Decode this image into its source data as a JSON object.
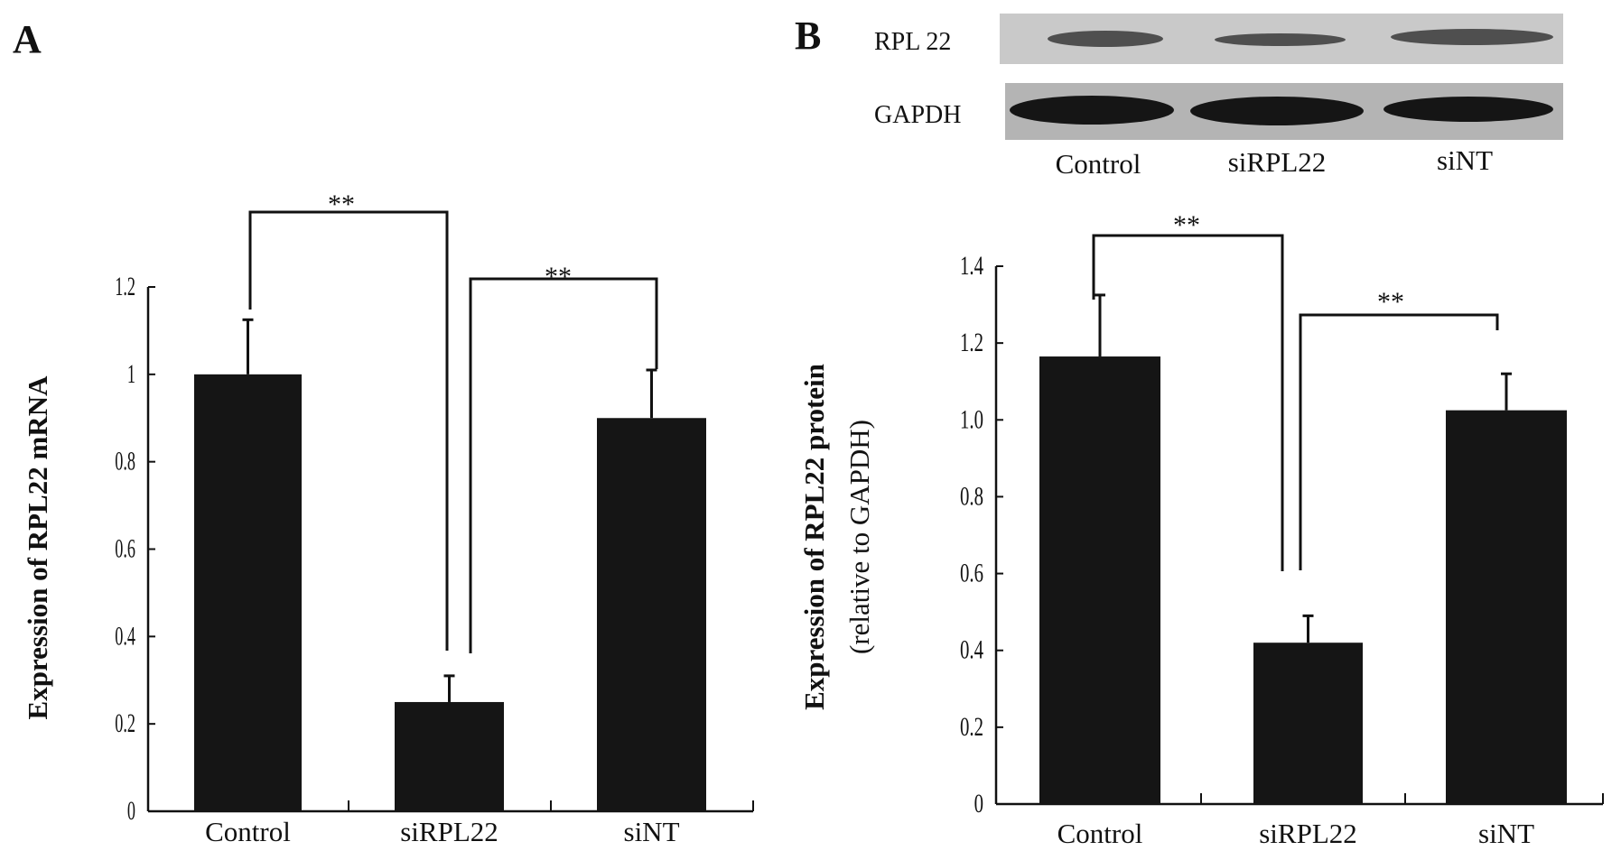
{
  "chart_data": [
    {
      "panel": "A",
      "type": "bar",
      "categories": [
        "Control",
        "siRPL22",
        "siNT"
      ],
      "values": [
        1.0,
        0.25,
        0.9
      ],
      "error_upper": [
        1.125,
        0.31,
        1.01
      ],
      "ylabel": "Expression of RPL22 mRNA",
      "xlabel": "",
      "ylim": [
        0,
        1.2
      ],
      "yticks": [
        "0",
        "0.2",
        "0.4",
        "0.6",
        "0.8",
        "1",
        "1.2"
      ],
      "significance": [
        {
          "from": "Control",
          "to": "siRPL22",
          "label": "**"
        },
        {
          "from": "siRPL22",
          "to": "siNT",
          "label": "**"
        }
      ]
    },
    {
      "panel": "B",
      "type": "bar",
      "categories": [
        "Control",
        "siRPL22",
        "siNT"
      ],
      "values": [
        1.165,
        0.42,
        1.025
      ],
      "error_upper": [
        1.325,
        0.49,
        1.12
      ],
      "ylabel": "Expression of RPL22 protein",
      "ylabel2": "(relative to GAPDH)",
      "xlabel": "",
      "ylim": [
        0,
        1.4
      ],
      "yticks": [
        "0",
        "0.2",
        "0.4",
        "0.6",
        "0.8",
        "1.0",
        "1.2",
        "1.4"
      ],
      "significance": [
        {
          "from": "Control",
          "to": "siRPL22",
          "label": "**"
        },
        {
          "from": "siRPL22",
          "to": "siNT",
          "label": "**"
        }
      ]
    }
  ],
  "blot": {
    "rows": [
      "RPL 22",
      "GAPDH"
    ],
    "lanes": [
      "Control",
      "siRPL22",
      "siNT"
    ]
  }
}
